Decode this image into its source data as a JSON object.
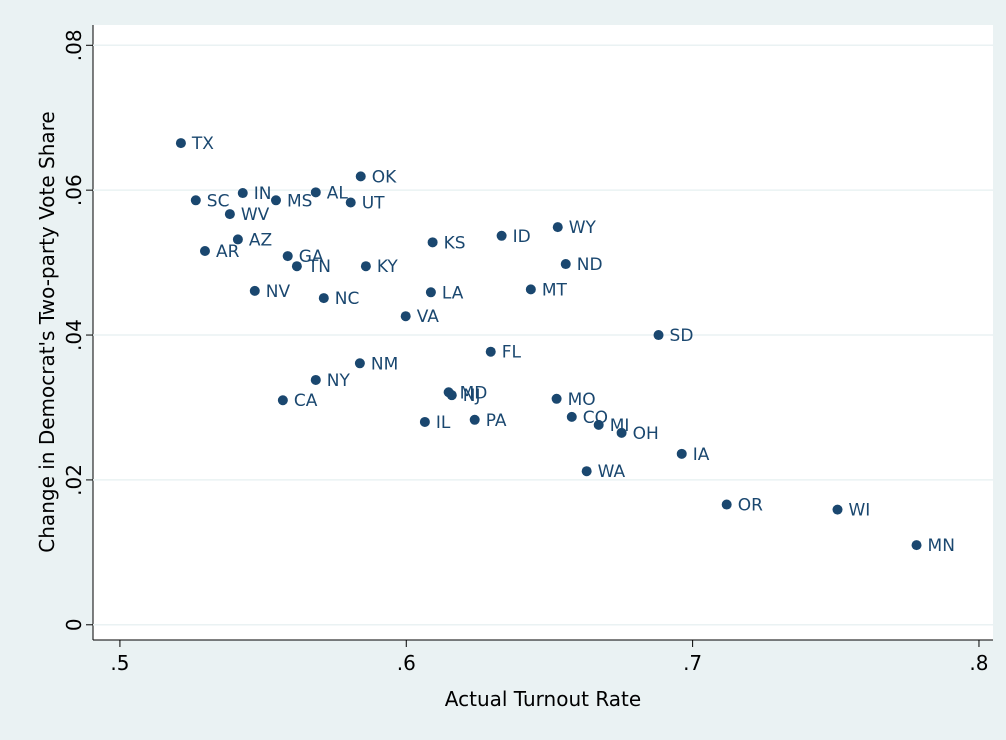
{
  "chart_data": {
    "type": "scatter",
    "x_label": "Actual Turnout Rate",
    "y_label": "Change in Democrat's Two-party Vote Share",
    "color": "#1a476f",
    "grid": true,
    "xlim": [
      0.4906,
      0.8049
    ],
    "ylim": [
      -0.0021,
      0.0828
    ],
    "xticks": [
      {
        "value": 0.5,
        "label": ".5"
      },
      {
        "value": 0.6,
        "label": ".6"
      },
      {
        "value": 0.7,
        "label": ".7"
      },
      {
        "value": 0.8,
        "label": ".8"
      }
    ],
    "yticks": [
      0,
      {
        "value": 0.02,
        "label": ".02"
      },
      {
        "value": 0.04,
        "label": ".04"
      },
      {
        "value": 0.06,
        "label": ".06"
      },
      {
        "value": 0.08,
        "label": ".08"
      }
    ],
    "labels": [
      "TX",
      "SC",
      "IN",
      "MS",
      "AL",
      "OK",
      "UT",
      "WV",
      "AZ",
      "AR",
      "GA",
      "TN",
      "KY",
      "KS",
      "ID",
      "WY",
      "ND",
      "MT",
      "LA",
      "NV",
      "NC",
      "VA",
      "SD",
      "FL",
      "NM",
      "NY",
      "CA",
      "MD",
      "NJ",
      "IL",
      "PA",
      "MO",
      "CO",
      "MI",
      "OH",
      "IA",
      "WA",
      "OR",
      "WI",
      "MN"
    ],
    "x": [
      0.5213,
      0.5265,
      0.5429,
      0.5545,
      0.5684,
      0.5841,
      0.5806,
      0.5384,
      0.5412,
      0.5297,
      0.5586,
      0.5618,
      0.5859,
      0.6092,
      0.6333,
      0.6529,
      0.6557,
      0.6435,
      0.6086,
      0.5471,
      0.5712,
      0.5998,
      0.6881,
      0.6295,
      0.5838,
      0.5684,
      0.5569,
      0.6148,
      0.6159,
      0.6065,
      0.6239,
      0.6525,
      0.6578,
      0.6672,
      0.6752,
      0.6962,
      0.663,
      0.7119,
      0.7506,
      0.7782
    ],
    "values": [
      0.0665,
      0.0586,
      0.0596,
      0.0586,
      0.0597,
      0.0619,
      0.0583,
      0.0567,
      0.0532,
      0.0516,
      0.0509,
      0.0495,
      0.0495,
      0.0528,
      0.0537,
      0.0549,
      0.0498,
      0.0463,
      0.0459,
      0.0461,
      0.0451,
      0.0426,
      0.04,
      0.0377,
      0.0361,
      0.0338,
      0.031,
      0.0321,
      0.0317,
      0.028,
      0.0283,
      0.0312,
      0.0287,
      0.0276,
      0.0265,
      0.0236,
      0.0212,
      0.0166,
      0.0159,
      0.011
    ]
  }
}
